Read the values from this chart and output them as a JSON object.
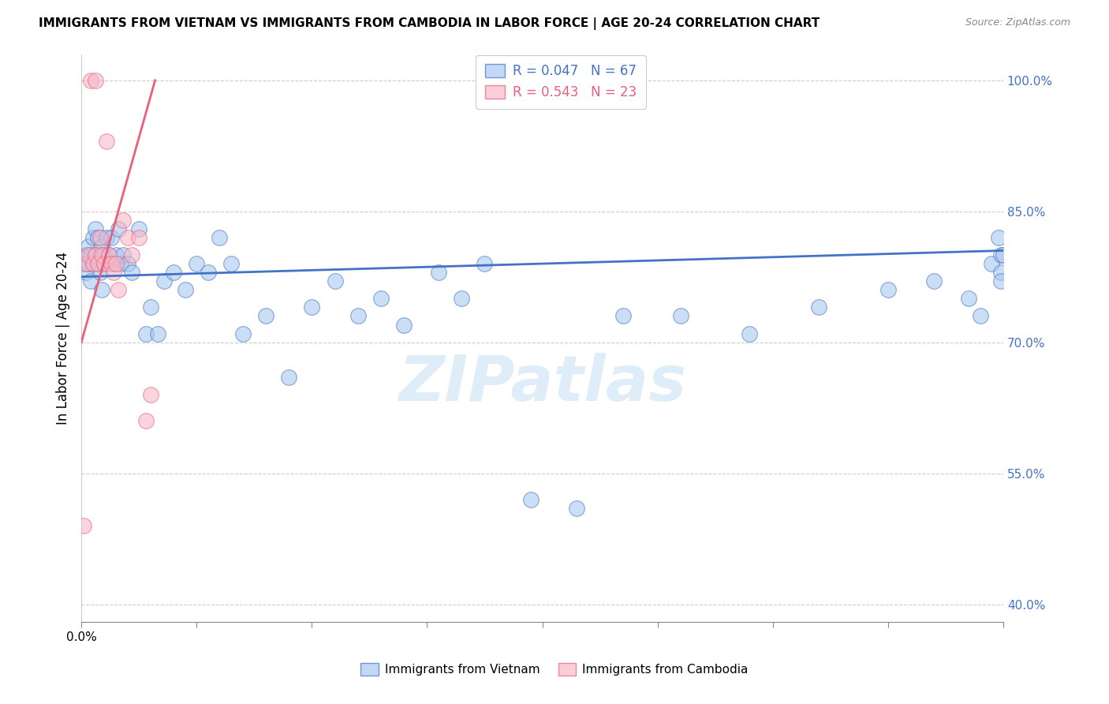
{
  "title": "IMMIGRANTS FROM VIETNAM VS IMMIGRANTS FROM CAMBODIA IN LABOR FORCE | AGE 20-24 CORRELATION CHART",
  "source": "Source: ZipAtlas.com",
  "ylabel": "In Labor Force | Age 20-24",
  "right_yticks": [
    "100.0%",
    "85.0%",
    "70.0%",
    "55.0%",
    "40.0%"
  ],
  "right_ytick_vals": [
    1.0,
    0.85,
    0.7,
    0.55,
    0.4
  ],
  "xmin": 0.0,
  "xmax": 0.4,
  "ymin": 0.38,
  "ymax": 1.03,
  "vietnam_color": "#a8c8f0",
  "cambodia_color": "#f8b8c8",
  "vietnam_edge_color": "#4472c4",
  "cambodia_edge_color": "#e8607a",
  "vietnam_line_color": "#4472c4",
  "cambodia_line_color": "#e8607a",
  "legend_R_vietnam": "0.047",
  "legend_N_vietnam": "67",
  "legend_R_cambodia": "0.543",
  "legend_N_cambodia": "23",
  "watermark": "ZIPatlas",
  "vietnam_x": [
    0.001,
    0.002,
    0.002,
    0.003,
    0.003,
    0.004,
    0.004,
    0.005,
    0.005,
    0.006,
    0.006,
    0.007,
    0.007,
    0.008,
    0.008,
    0.009,
    0.009,
    0.01,
    0.01,
    0.011,
    0.012,
    0.013,
    0.014,
    0.015,
    0.016,
    0.017,
    0.018,
    0.02,
    0.022,
    0.025,
    0.028,
    0.03,
    0.033,
    0.036,
    0.04,
    0.045,
    0.05,
    0.055,
    0.06,
    0.065,
    0.07,
    0.08,
    0.09,
    0.1,
    0.11,
    0.12,
    0.13,
    0.14,
    0.155,
    0.165,
    0.175,
    0.195,
    0.215,
    0.235,
    0.26,
    0.29,
    0.32,
    0.35,
    0.37,
    0.385,
    0.39,
    0.395,
    0.398,
    0.399,
    0.399,
    0.399,
    0.4
  ],
  "vietnam_y": [
    0.79,
    0.8,
    0.78,
    0.81,
    0.79,
    0.8,
    0.77,
    0.82,
    0.79,
    0.83,
    0.8,
    0.79,
    0.82,
    0.8,
    0.78,
    0.81,
    0.76,
    0.8,
    0.79,
    0.82,
    0.8,
    0.82,
    0.79,
    0.8,
    0.83,
    0.79,
    0.8,
    0.79,
    0.78,
    0.83,
    0.71,
    0.74,
    0.71,
    0.77,
    0.78,
    0.76,
    0.79,
    0.78,
    0.82,
    0.79,
    0.71,
    0.73,
    0.66,
    0.74,
    0.77,
    0.73,
    0.75,
    0.72,
    0.78,
    0.75,
    0.79,
    0.52,
    0.51,
    0.73,
    0.73,
    0.71,
    0.74,
    0.76,
    0.77,
    0.75,
    0.73,
    0.79,
    0.82,
    0.78,
    0.77,
    0.8,
    0.8
  ],
  "cambodia_x": [
    0.001,
    0.002,
    0.003,
    0.004,
    0.005,
    0.006,
    0.006,
    0.007,
    0.008,
    0.009,
    0.01,
    0.011,
    0.012,
    0.013,
    0.014,
    0.015,
    0.016,
    0.018,
    0.02,
    0.022,
    0.025,
    0.028,
    0.03
  ],
  "cambodia_y": [
    0.49,
    0.79,
    0.8,
    1.0,
    0.79,
    0.8,
    1.0,
    0.79,
    0.82,
    0.8,
    0.79,
    0.93,
    0.8,
    0.79,
    0.78,
    0.79,
    0.76,
    0.84,
    0.82,
    0.8,
    0.82,
    0.61,
    0.64
  ],
  "vietnam_line_x": [
    0.0,
    0.4
  ],
  "vietnam_line_y": [
    0.775,
    0.805
  ],
  "cambodia_line_x": [
    0.0,
    0.032
  ],
  "cambodia_line_y": [
    0.7,
    1.0
  ]
}
